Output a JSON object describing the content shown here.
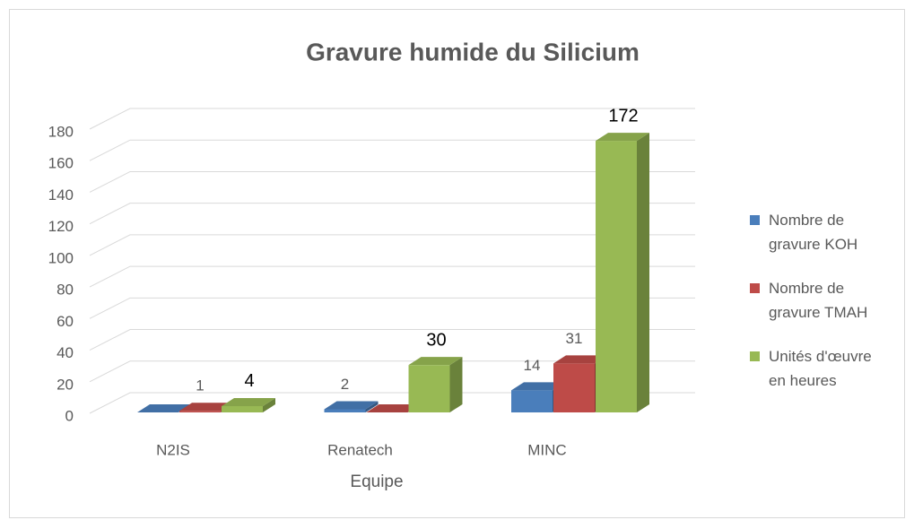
{
  "chart_data": {
    "type": "bar3d",
    "title": "Gravure humide du Silicium",
    "x_label": "Equipe",
    "categories": [
      "N2IS",
      "Renatech",
      "MINC"
    ],
    "series": [
      {
        "name": "Nombre de gravure KOH",
        "color": "#4a7ebb",
        "values": [
          0,
          2,
          14
        ],
        "value_labels": [
          null,
          "2",
          "14"
        ]
      },
      {
        "name": "Nombre de gravure TMAH",
        "color": "#be4b48",
        "values": [
          1,
          0,
          31
        ],
        "value_labels": [
          "1",
          null,
          "31"
        ]
      },
      {
        "name": "Unités d'œuvre en heures",
        "color": "#98b954",
        "values": [
          4,
          30,
          172
        ],
        "value_labels": [
          "4",
          "30",
          "172"
        ]
      }
    ],
    "ylim": [
      0,
      180
    ],
    "yticks": [
      0,
      20,
      40,
      60,
      80,
      100,
      120,
      140,
      160,
      180
    ],
    "grid": true,
    "legend": "right"
  }
}
